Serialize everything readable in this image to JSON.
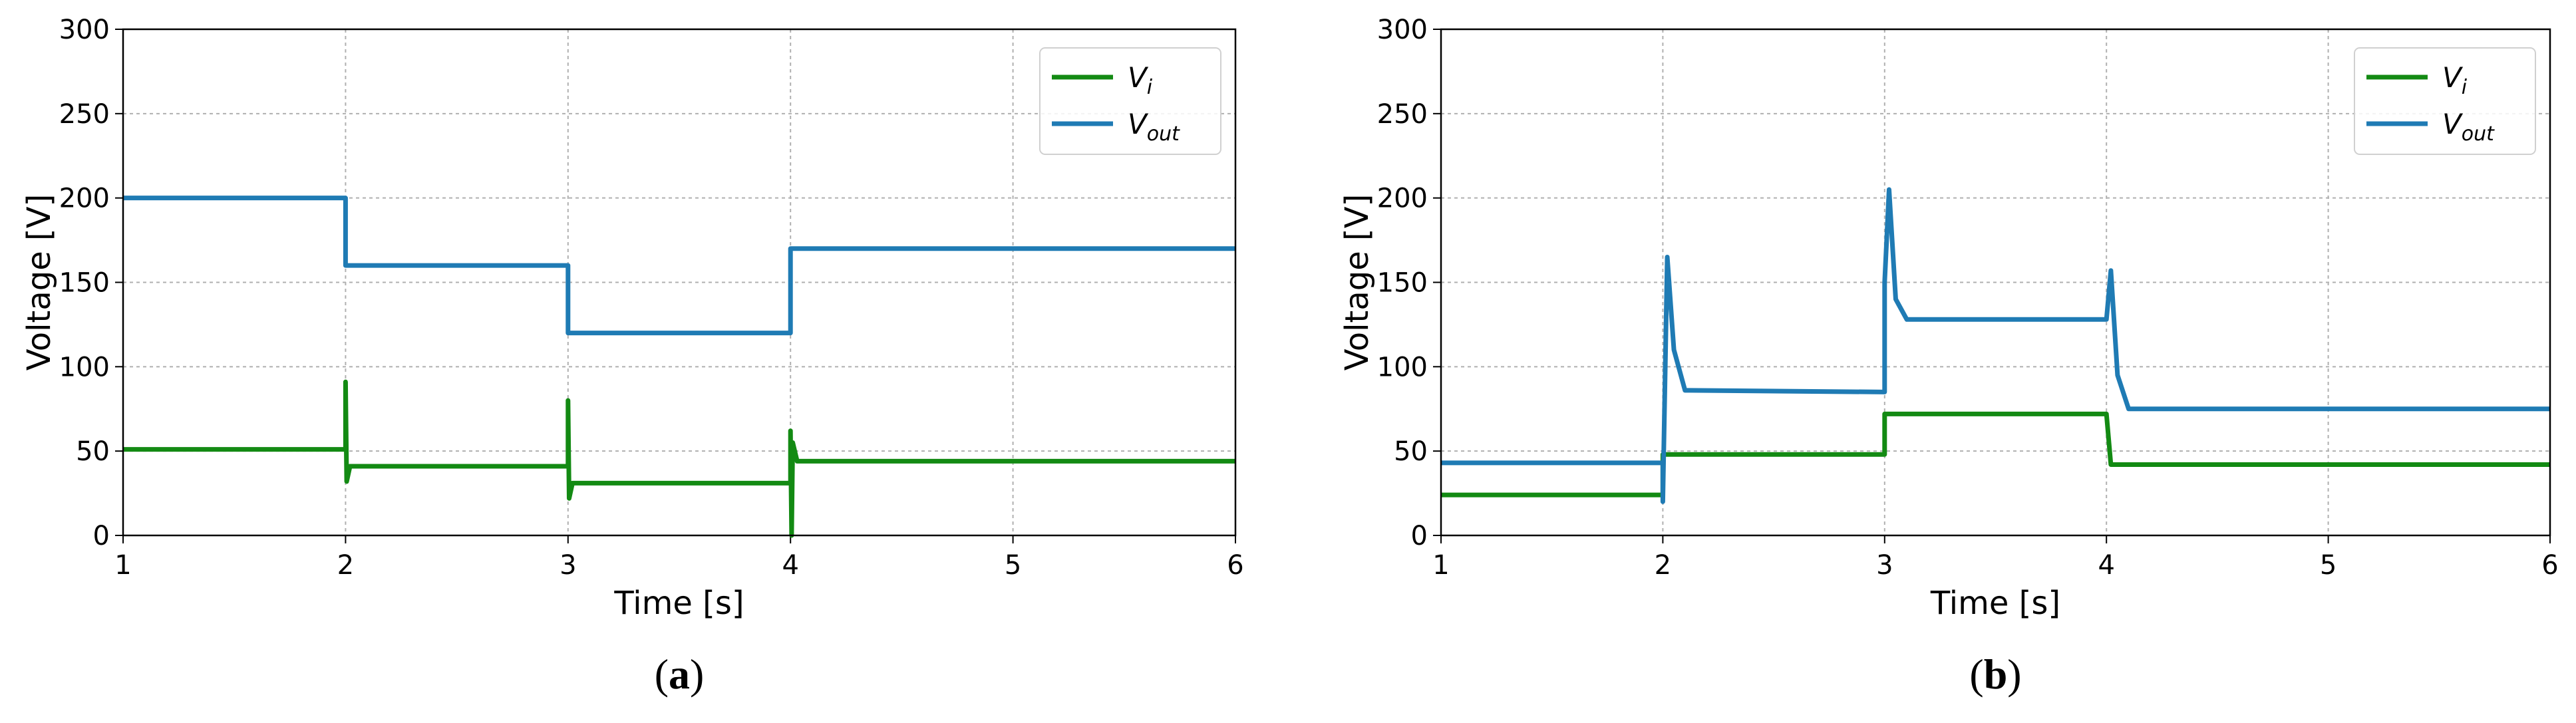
{
  "chart_data": [
    {
      "type": "line",
      "panel_label": "(a)",
      "x_label": "Time [s]",
      "y_label": "Voltage [V]",
      "x": [
        1,
        2,
        2,
        2.005,
        2.02,
        3,
        3,
        3.005,
        3.02,
        4,
        4,
        4.005,
        4.01,
        4.03,
        6
      ],
      "series": [
        {
          "name": "Vi",
          "color": "#138a13",
          "values": [
            51,
            51,
            91,
            32,
            41,
            41,
            80,
            22,
            31,
            31,
            62,
            0,
            55,
            44,
            44
          ]
        },
        {
          "name": "Vout",
          "color": "#1f7bb4",
          "values": [
            200,
            200,
            160,
            160,
            160,
            160,
            120,
            120,
            120,
            120,
            170,
            170,
            170,
            170,
            170
          ]
        }
      ],
      "xlim": [
        1,
        6
      ],
      "xticks": [
        1,
        2,
        3,
        4,
        5,
        6
      ],
      "ylim": [
        0,
        300
      ],
      "yticks": [
        0,
        50,
        100,
        150,
        200,
        250,
        300
      ],
      "grid": true,
      "legend": "upper right"
    },
    {
      "type": "line",
      "panel_label": "(b)",
      "x_label": "Time [s]",
      "y_label": "Voltage [V]",
      "x": [
        1,
        2,
        2,
        2.02,
        2.05,
        2.1,
        3,
        3,
        3.02,
        3.05,
        3.1,
        4,
        4.02,
        4.05,
        4.1,
        6
      ],
      "series": [
        {
          "name": "Vi",
          "color": "#138a13",
          "values": [
            24,
            24,
            48,
            48,
            48,
            48,
            48,
            72,
            72,
            72,
            72,
            72,
            42,
            42,
            42,
            42
          ]
        },
        {
          "name": "Vout",
          "color": "#1f7bb4",
          "values": [
            43,
            43,
            20,
            165,
            110,
            86,
            85,
            150,
            205,
            140,
            128,
            128,
            157,
            95,
            75,
            75
          ]
        }
      ],
      "xlim": [
        1,
        6
      ],
      "xticks": [
        1,
        2,
        3,
        4,
        5,
        6
      ],
      "ylim": [
        0,
        300
      ],
      "yticks": [
        0,
        50,
        100,
        150,
        200,
        250,
        300
      ],
      "grid": true,
      "legend": "upper right"
    }
  ]
}
